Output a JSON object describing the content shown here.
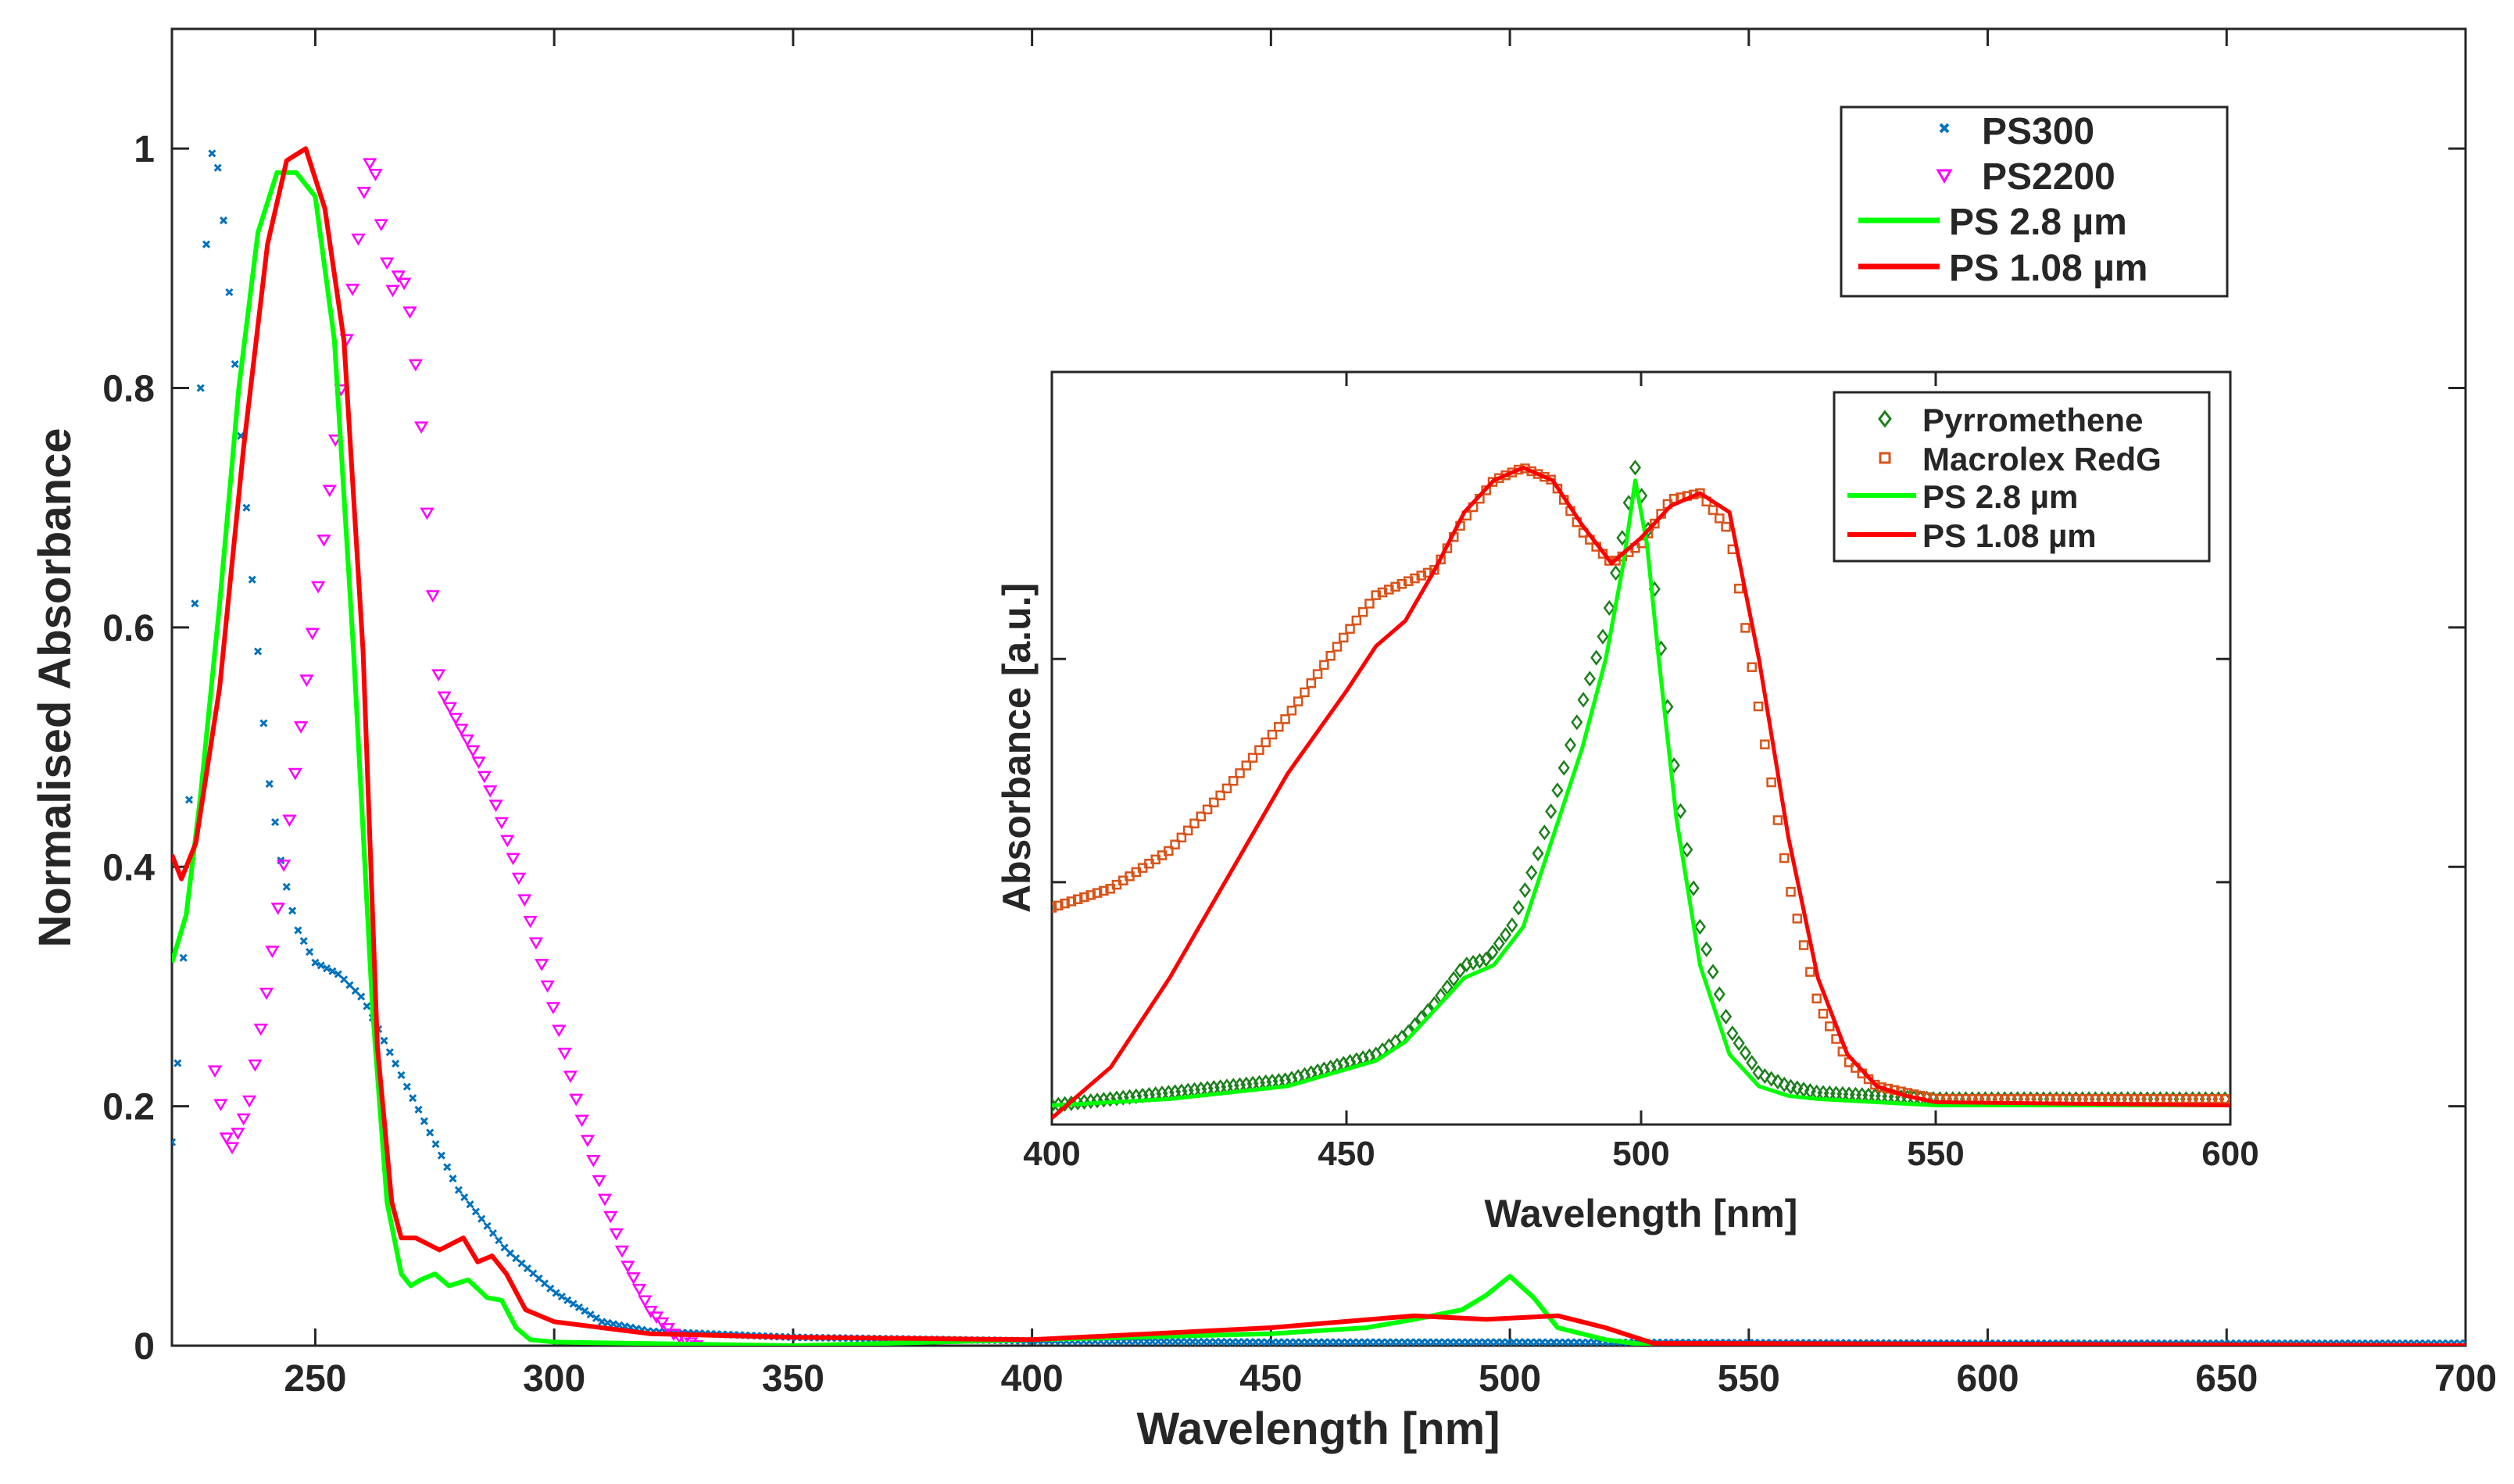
{
  "chart_data": [
    {
      "id": "main",
      "type": "line",
      "xlabel": "Wavelength [nm]",
      "ylabel": "Normalised Absorbance",
      "xlim": [
        220,
        700
      ],
      "ylim": [
        0,
        1.1
      ],
      "xticks": [
        250,
        300,
        350,
        400,
        450,
        500,
        550,
        600,
        650,
        700
      ],
      "xtick_labels": [
        "250",
        "300",
        "350",
        "400",
        "450",
        "500",
        "550",
        "600",
        "650",
        "700"
      ],
      "yticks": [
        0,
        0.2,
        0.4,
        0.6,
        0.8,
        1
      ],
      "ytick_labels": [
        "0",
        "0.2",
        "0.4",
        "0.6",
        "0.8",
        "1"
      ],
      "legend_position": "top-right",
      "series": [
        {
          "name": "PS300",
          "legend_label": "PS300",
          "style": "x-markers",
          "color": "#0072BD",
          "x": [
            220,
            222,
            224,
            226,
            228,
            230,
            232,
            234,
            236,
            238,
            240,
            243,
            246,
            250,
            255,
            260,
            265,
            270,
            275,
            280,
            290,
            300,
            310,
            320,
            350,
            400,
            450,
            500,
            600,
            700
          ],
          "y": [
            0.17,
            0.28,
            0.5,
            0.8,
            1.0,
            0.98,
            0.88,
            0.78,
            0.68,
            0.58,
            0.48,
            0.4,
            0.35,
            0.32,
            0.31,
            0.29,
            0.25,
            0.21,
            0.17,
            0.13,
            0.08,
            0.045,
            0.02,
            0.012,
            0.007,
            0.004,
            0.003,
            0.003,
            0.002,
            0.002
          ]
        },
        {
          "name": "PS2200",
          "legend_label": "PS2200",
          "style": "triangle-markers",
          "color": "#FF00FF",
          "x": [
            229,
            232,
            236,
            240,
            244,
            248,
            252,
            256,
            260,
            262,
            264,
            266,
            268,
            270,
            272,
            274,
            276,
            280,
            284,
            288,
            292,
            296,
            300,
            305,
            310,
            315,
            320,
            325,
            330
          ],
          "y": [
            0.23,
            0.16,
            0.2,
            0.3,
            0.42,
            0.55,
            0.68,
            0.82,
            0.96,
            1.0,
            0.93,
            0.88,
            0.9,
            0.86,
            0.78,
            0.66,
            0.55,
            0.52,
            0.49,
            0.45,
            0.4,
            0.34,
            0.28,
            0.2,
            0.13,
            0.07,
            0.03,
            0.01,
            0.0
          ]
        },
        {
          "name": "PS 2.8 µm",
          "legend_label": "PS 2.8 µm",
          "style": "line",
          "color": "#00FF00",
          "x": [
            220,
            223,
            226,
            230,
            234,
            238,
            242,
            246,
            250,
            254,
            258,
            262,
            265,
            268,
            270,
            272,
            275,
            278,
            282,
            286,
            289,
            292,
            295,
            300,
            350,
            450,
            470,
            480,
            490,
            495,
            500,
            505,
            510,
            520,
            530,
            700
          ],
          "y": [
            0.32,
            0.36,
            0.46,
            0.62,
            0.8,
            0.93,
            0.98,
            0.98,
            0.96,
            0.84,
            0.58,
            0.28,
            0.12,
            0.06,
            0.05,
            0.055,
            0.06,
            0.05,
            0.055,
            0.04,
            0.038,
            0.015,
            0.005,
            0.003,
            0.0,
            0.01,
            0.015,
            0.022,
            0.03,
            0.042,
            0.058,
            0.04,
            0.015,
            0.005,
            0.0,
            0.0
          ]
        },
        {
          "name": "PS 1.08 µm",
          "legend_label": "PS 1.08 µm",
          "style": "line",
          "color": "#FF0000",
          "x": [
            220,
            222,
            225,
            230,
            235,
            240,
            244,
            248,
            252,
            256,
            260,
            263,
            266,
            268,
            271,
            276,
            281,
            284,
            287,
            290,
            294,
            300,
            320,
            350,
            400,
            450,
            480,
            495,
            510,
            520,
            530,
            700
          ],
          "y": [
            0.41,
            0.39,
            0.42,
            0.55,
            0.75,
            0.92,
            0.99,
            1.0,
            0.95,
            0.84,
            0.58,
            0.25,
            0.12,
            0.09,
            0.09,
            0.08,
            0.09,
            0.07,
            0.075,
            0.06,
            0.03,
            0.02,
            0.01,
            0.007,
            0.005,
            0.015,
            0.025,
            0.022,
            0.025,
            0.015,
            0.002,
            0.0
          ]
        }
      ]
    },
    {
      "id": "inset",
      "type": "line",
      "xlabel": "Wavelength [nm]",
      "ylabel": "Absorbance [a.u.]",
      "xlim": [
        400,
        600
      ],
      "ylim": [
        -0.03,
        1.15
      ],
      "xticks": [
        400,
        450,
        500,
        550,
        600
      ],
      "xtick_labels": [
        "400",
        "450",
        "500",
        "550",
        "600"
      ],
      "legend_position": "top-right",
      "series": [
        {
          "name": "Pyrromethene",
          "legend_label": "Pyrromethene",
          "style": "diamond-markers",
          "color": "#1B7F1B",
          "x": [
            400,
            420,
            440,
            455,
            460,
            465,
            470,
            474,
            478,
            482,
            486,
            490,
            494,
            497,
            499,
            501,
            503,
            506,
            510,
            515,
            520,
            525,
            530,
            540,
            550,
            600
          ],
          "y": [
            0.0,
            0.02,
            0.04,
            0.08,
            0.11,
            0.16,
            0.22,
            0.23,
            0.28,
            0.38,
            0.5,
            0.63,
            0.75,
            0.9,
            1.0,
            0.92,
            0.75,
            0.5,
            0.28,
            0.12,
            0.05,
            0.03,
            0.02,
            0.015,
            0.01,
            0.01
          ]
        },
        {
          "name": "Macrolex RedG",
          "legend_label": "Macrolex RedG",
          "style": "square-markers",
          "color": "#D95319",
          "x": [
            400,
            410,
            420,
            430,
            440,
            450,
            455,
            460,
            465,
            470,
            475,
            480,
            485,
            490,
            495,
            500,
            505,
            510,
            515,
            520,
            525,
            530,
            535,
            540,
            550,
            600
          ],
          "y": [
            0.31,
            0.34,
            0.4,
            0.5,
            0.61,
            0.74,
            0.8,
            0.82,
            0.84,
            0.92,
            0.98,
            1.0,
            0.98,
            0.9,
            0.85,
            0.88,
            0.95,
            0.96,
            0.9,
            0.62,
            0.35,
            0.16,
            0.07,
            0.03,
            0.01,
            0.01
          ]
        },
        {
          "name": "PS 2.8 µm",
          "legend_label": "PS 2.8 µm",
          "style": "line",
          "color": "#00FF00",
          "x": [
            400,
            420,
            440,
            455,
            460,
            465,
            470,
            475,
            480,
            485,
            490,
            494,
            497,
            499,
            501,
            503,
            506,
            510,
            515,
            520,
            525,
            530,
            550,
            600
          ],
          "y": [
            0.0,
            0.01,
            0.03,
            0.07,
            0.1,
            0.15,
            0.2,
            0.22,
            0.28,
            0.42,
            0.56,
            0.7,
            0.85,
            0.98,
            0.88,
            0.7,
            0.45,
            0.22,
            0.08,
            0.03,
            0.015,
            0.01,
            0.0,
            0.0
          ]
        },
        {
          "name": "PS 1.08 µm",
          "legend_label": "PS 1.08 µm",
          "style": "line",
          "color": "#FF0000",
          "x": [
            400,
            410,
            420,
            430,
            440,
            450,
            455,
            460,
            465,
            470,
            475,
            480,
            485,
            490,
            495,
            500,
            505,
            510,
            515,
            520,
            525,
            530,
            535,
            540,
            545,
            550,
            600
          ],
          "y": [
            -0.02,
            0.06,
            0.2,
            0.36,
            0.52,
            0.65,
            0.72,
            0.76,
            0.84,
            0.93,
            0.98,
            1.0,
            0.98,
            0.91,
            0.85,
            0.89,
            0.94,
            0.96,
            0.93,
            0.7,
            0.42,
            0.2,
            0.08,
            0.03,
            0.015,
            0.005,
            0.0
          ]
        }
      ]
    }
  ]
}
